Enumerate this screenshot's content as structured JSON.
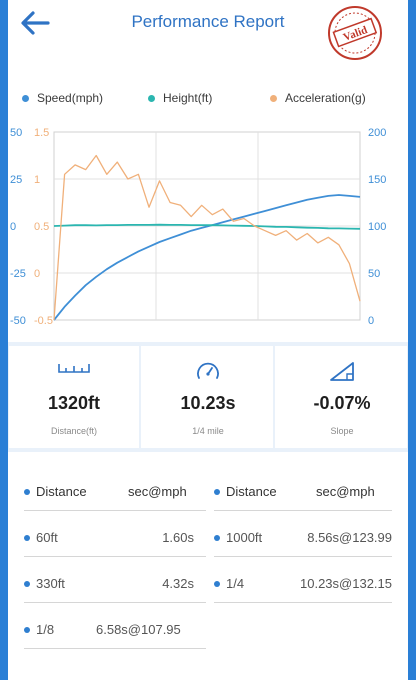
{
  "header": {
    "title": "Performance Report",
    "stamp_text": "Valid"
  },
  "legend": [
    {
      "label": "Speed(mph)",
      "color": "#3f8fd6"
    },
    {
      "label": "Height(ft)",
      "color": "#2bb6b0"
    },
    {
      "label": "Acceleration(g)",
      "color": "#f0b07a"
    }
  ],
  "chart_data": {
    "type": "line",
    "left_axis_speed_ticks": [
      "50",
      "25",
      "0",
      "-25",
      "-50"
    ],
    "left_axis_accel_ticks": [
      "1.5",
      "1",
      "0.5",
      "0",
      "-0.5"
    ],
    "right_axis_ticks": [
      "200",
      "150",
      "100",
      "50",
      "0"
    ],
    "speed_ylim": [
      0,
      200
    ],
    "height_ylim": [
      -50,
      50
    ],
    "accel_ylim": [
      -0.5,
      1.5
    ],
    "series": [
      {
        "key": "speed",
        "color": "#3f8fd6",
        "values": [
          0,
          14,
          26,
          37,
          46,
          54,
          61,
          67,
          73,
          78,
          83,
          87,
          91,
          95,
          98,
          101,
          104,
          107,
          110,
          113,
          116,
          119,
          122,
          125,
          128,
          130,
          132,
          133,
          132,
          131
        ]
      },
      {
        "key": "height",
        "color": "#2bb6b0",
        "values": [
          0,
          0.2,
          0.4,
          0.4,
          0.3,
          0.5,
          0.5,
          0.6,
          0.6,
          0.6,
          0.7,
          0.6,
          0.6,
          0.5,
          0.5,
          0.4,
          0.3,
          0.2,
          0.1,
          0,
          -0.2,
          -0.4,
          -0.5,
          -0.7,
          -0.9,
          -1,
          -1.2,
          -1.3,
          -1.4,
          -1.5
        ]
      },
      {
        "key": "acceleration",
        "color": "#f0b07a",
        "values": [
          -0.5,
          1.05,
          1.15,
          1.1,
          1.25,
          1.05,
          1.18,
          1.0,
          1.05,
          0.7,
          0.98,
          0.75,
          0.72,
          0.6,
          0.72,
          0.62,
          0.68,
          0.55,
          0.58,
          0.5,
          0.45,
          0.4,
          0.45,
          0.35,
          0.42,
          0.32,
          0.38,
          0.3,
          0.1,
          -0.3
        ]
      }
    ]
  },
  "stats": [
    {
      "icon": "ruler-icon",
      "value": "1320ft",
      "label": "Distance(ft)"
    },
    {
      "icon": "speedometer-icon",
      "value": "10.23s",
      "label": "1/4 mile"
    },
    {
      "icon": "slope-icon",
      "value": "-0.07%",
      "label": "Slope"
    }
  ],
  "splits": {
    "header": {
      "left_label": "Distance",
      "left_value": "sec@mph",
      "right_label": "Distance",
      "right_value": "sec@mph"
    },
    "rows": [
      {
        "left_label": "60ft",
        "left_value": "1.60s",
        "right_label": "1000ft",
        "right_value": "8.56s@123.99"
      },
      {
        "left_label": "330ft",
        "left_value": "4.32s",
        "right_label": "1/4",
        "right_value": "10.23s@132.15"
      },
      {
        "left_label": "1/8",
        "left_value": "6.58s@107.95",
        "right_label": "",
        "right_value": ""
      }
    ]
  }
}
